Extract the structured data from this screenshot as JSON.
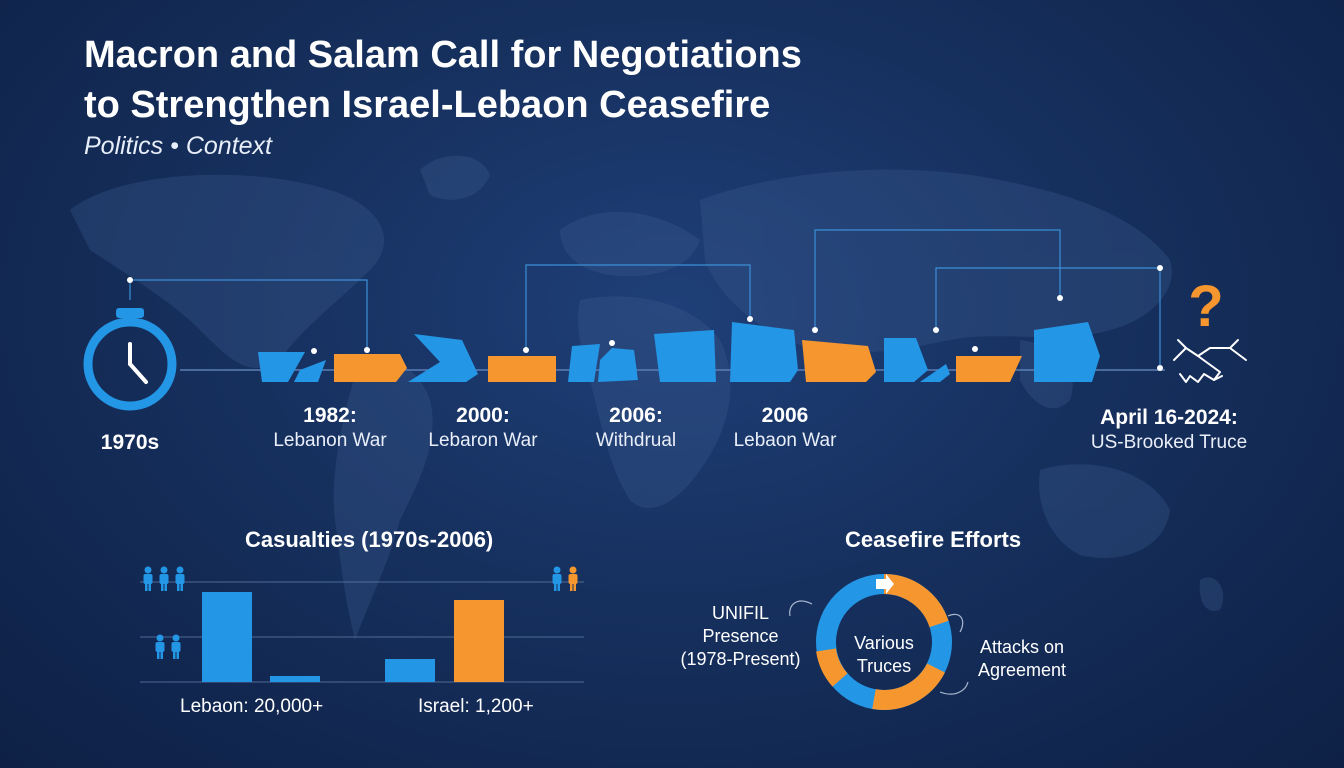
{
  "title_line1": "Macron and Salam Call for Negotiations",
  "title_line2": "to Strengthen Israel-Lebaon Ceasefire",
  "subtitle": "Politics • Context",
  "timeline": {
    "start_label": "1970s",
    "events": [
      {
        "year": "1982:",
        "desc": "Lebanon War"
      },
      {
        "year": "2000:",
        "desc": "Lebaron War"
      },
      {
        "year": "2006:",
        "desc": "Withdrual"
      },
      {
        "year": "2006",
        "desc": "Lebaon War"
      }
    ],
    "end": {
      "year": "April 16-2024:",
      "desc": "US-Brooked Truce"
    }
  },
  "casualties": {
    "title": "Casualties (1970s-2006)",
    "labels": [
      "Lebaon: 20,000+",
      "Israel: 1,200+"
    ]
  },
  "chart_data": {
    "type": "bar",
    "title": "Casualties (1970s-2006)",
    "groups": [
      "Lebaon: 20,000+",
      "Israel: 1,200+"
    ],
    "series": [
      {
        "values": [
          0.9,
          0.06
        ],
        "color": "#2496e6"
      },
      {
        "values": [
          0.23,
          0.82
        ],
        "color": "#2496e6"
      }
    ],
    "note": "values are relative bar heights; no numeric axis shown",
    "ylim": [
      0,
      1
    ],
    "grid": true
  },
  "ceasefire": {
    "title": "Ceasefire Efforts",
    "center": [
      "Various",
      "Truces"
    ],
    "left": [
      "UNIFIL",
      "Presence",
      "(1978-Present)"
    ],
    "right": [
      "Attacks on",
      "Agreement"
    ]
  },
  "colors": {
    "blue": "#2496e6",
    "orange": "#f5962f",
    "background": "#16305e"
  },
  "icons": [
    "stopwatch-icon",
    "question-mark-icon",
    "handshake-icon",
    "person-icon",
    "arrow-right-icon"
  ]
}
